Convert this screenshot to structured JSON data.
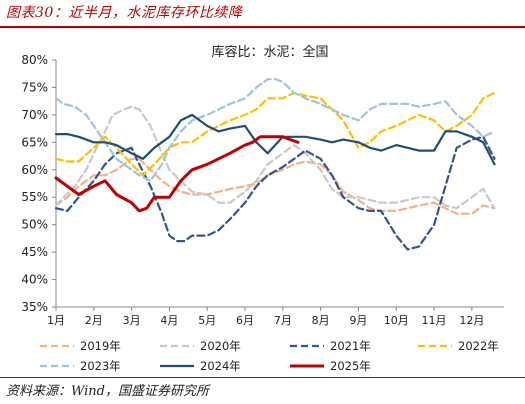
{
  "figure": {
    "title": "图表30：近半月，水泥库存环比续降",
    "source": "资料来源：Wind，国盛证券研究所"
  },
  "chart_data": {
    "type": "line",
    "title": "库容比：水泥：全国",
    "xlabel": "",
    "ylabel": "",
    "ylim": [
      35,
      80
    ],
    "yticks": [
      "35%",
      "40%",
      "45%",
      "50%",
      "55%",
      "60%",
      "65%",
      "70%",
      "75%",
      "80%"
    ],
    "xticks": [
      "1月",
      "2月",
      "3月",
      "4月",
      "5月",
      "6月",
      "7月",
      "8月",
      "9月",
      "10月",
      "11月",
      "12月"
    ],
    "legend_position": "bottom",
    "grid": false,
    "series": [
      {
        "name": "2019年",
        "color": "#f4b183",
        "dash": "dash",
        "x": [
          1,
          1.3,
          1.6,
          2,
          2.3,
          2.6,
          3,
          3.2,
          3.5,
          3.8,
          4,
          4.3,
          4.6,
          5,
          5.3,
          5.6,
          6,
          6.3,
          6.6,
          7,
          7.3,
          7.6,
          8,
          8.3,
          8.6,
          9,
          9.3,
          9.6,
          10,
          10.3,
          10.6,
          11,
          11.3,
          11.6,
          12,
          12.3,
          12.6
        ],
        "y": [
          53.5,
          55,
          57,
          59,
          59,
          60,
          62,
          62,
          60,
          58,
          57,
          56,
          55.5,
          55.5,
          56,
          56.5,
          57,
          57.5,
          59,
          60,
          61,
          61.5,
          61,
          59,
          56,
          54.5,
          53,
          52.5,
          52.5,
          53,
          53.5,
          54,
          53,
          52,
          52,
          53.5,
          53
        ]
      },
      {
        "name": "2020年",
        "color": "#c9c9c9",
        "dash": "dash",
        "x": [
          1,
          1.2,
          1.5,
          1.8,
          2,
          2.3,
          2.5,
          2.8,
          3,
          3.2,
          3.5,
          3.8,
          4,
          4.3,
          4.6,
          5,
          5.3,
          5.6,
          6,
          6.3,
          6.6,
          7,
          7.3,
          7.6,
          8,
          8.3,
          8.6,
          9,
          9.3,
          9.6,
          10,
          10.3,
          10.6,
          11,
          11.3,
          11.6,
          12,
          12.3,
          12.6
        ],
        "y": [
          53.5,
          55,
          57,
          60,
          63,
          67,
          70,
          71,
          71.5,
          71,
          68,
          63,
          60,
          58,
          56,
          55.5,
          54,
          54,
          56,
          58,
          61,
          63,
          64.5,
          63,
          60,
          56.5,
          55,
          55,
          54.5,
          54,
          54,
          54.5,
          55,
          55,
          53.5,
          53,
          55,
          56.5,
          53
        ]
      },
      {
        "name": "2021年",
        "color": "#2f5597",
        "dash": "dash",
        "x": [
          1,
          1.3,
          1.6,
          2,
          2.3,
          2.6,
          3,
          3.2,
          3.5,
          3.8,
          4,
          4.2,
          4.4,
          4.6,
          5,
          5.3,
          5.6,
          6,
          6.3,
          6.6,
          7,
          7.3,
          7.6,
          8,
          8.3,
          8.6,
          9,
          9.3,
          9.6,
          10,
          10.3,
          10.6,
          11,
          11.3,
          11.6,
          12,
          12.3,
          12.6
        ],
        "y": [
          53,
          52.5,
          55,
          58,
          61,
          63,
          64,
          61,
          57,
          52,
          48,
          47,
          47,
          48,
          48,
          49,
          51,
          54,
          57,
          59,
          60.5,
          62,
          63.5,
          62,
          59,
          55,
          53,
          52.5,
          52.5,
          48,
          45.5,
          46,
          50,
          57,
          64,
          65.5,
          66,
          62
        ]
      },
      {
        "name": "2022年",
        "color": "#ffc000",
        "dash": "dash",
        "x": [
          1,
          1.3,
          1.6,
          2,
          2.3,
          2.6,
          3,
          3.3,
          3.6,
          4,
          4.3,
          4.6,
          5,
          5.3,
          5.6,
          6,
          6.3,
          6.6,
          7,
          7.3,
          7.6,
          8,
          8.3,
          8.6,
          9,
          9.3,
          9.6,
          10,
          10.3,
          10.6,
          11,
          11.3,
          11.6,
          12,
          12.3,
          12.6
        ],
        "y": [
          62,
          61.5,
          61.5,
          64,
          66,
          64,
          61,
          59,
          61,
          64,
          65,
          65,
          67,
          68,
          69,
          70,
          71,
          73,
          73,
          74,
          73.5,
          73,
          71,
          69,
          64,
          65,
          67,
          68,
          69,
          70,
          69,
          67,
          68,
          70,
          73,
          74
        ]
      },
      {
        "name": "2023年",
        "color": "#9dc3e6",
        "dash": "dash",
        "x": [
          1,
          1.2,
          1.5,
          1.8,
          2,
          2.3,
          2.6,
          3,
          3.2,
          3.5,
          3.8,
          4,
          4.3,
          4.6,
          5,
          5.3,
          5.6,
          6,
          6.3,
          6.6,
          6.8,
          7,
          7.3,
          7.6,
          8,
          8.3,
          8.6,
          9,
          9.3,
          9.6,
          10,
          10.3,
          10.6,
          11,
          11.3,
          11.6,
          12,
          12.3,
          12.6
        ],
        "y": [
          73,
          72,
          71.5,
          70,
          68,
          65,
          62,
          60,
          59,
          58,
          61,
          64,
          67,
          69,
          70,
          71,
          72,
          73,
          75,
          76.5,
          76.5,
          76,
          74,
          73,
          72,
          71,
          70,
          69,
          71,
          72,
          72,
          72,
          71.5,
          72,
          72.5,
          70,
          68,
          66,
          67
        ]
      },
      {
        "name": "2024年",
        "color": "#1f4e79",
        "dash": "solid",
        "x": [
          1,
          1.3,
          1.6,
          2,
          2.3,
          2.6,
          3,
          3.3,
          3.6,
          4,
          4.3,
          4.6,
          5,
          5.3,
          5.6,
          6,
          6.3,
          6.6,
          7,
          7.3,
          7.6,
          8,
          8.3,
          8.6,
          9,
          9.3,
          9.6,
          10,
          10.3,
          10.6,
          11,
          11.3,
          11.6,
          12,
          12.3,
          12.6
        ],
        "y": [
          66.5,
          66.5,
          66,
          65,
          65,
          64.5,
          63,
          62,
          64,
          66,
          69,
          70,
          68,
          67,
          67.5,
          68,
          65,
          63,
          66,
          66,
          66,
          65.5,
          65,
          65.5,
          65,
          64,
          63.5,
          64.5,
          64,
          63.5,
          63.5,
          67,
          67,
          66,
          65,
          61
        ]
      },
      {
        "name": "2025年",
        "color": "#c00000",
        "dash": "solid",
        "x": [
          1,
          1.3,
          1.6,
          2,
          2.3,
          2.6,
          3,
          3.2,
          3.4,
          3.6,
          4,
          4.3,
          4.6,
          5,
          5.3,
          5.6,
          6,
          6.2,
          6.4,
          6.6,
          6.8,
          7,
          7.2,
          7.4
        ],
        "y": [
          58.5,
          57,
          55.5,
          57,
          58,
          55.5,
          54,
          52.5,
          53,
          55,
          55,
          58,
          60,
          61,
          62,
          63,
          64.5,
          65,
          66,
          66,
          66,
          66,
          65.5,
          65
        ]
      }
    ]
  }
}
